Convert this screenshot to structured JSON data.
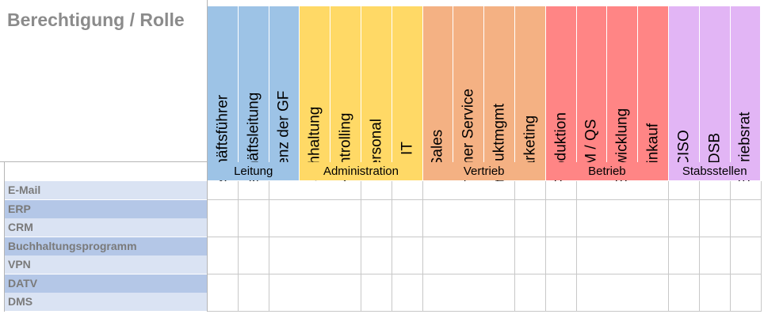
{
  "title": "Berechtigung / Rolle",
  "groups": [
    {
      "name": "Leitung",
      "color": "#9dc3e6",
      "roles": [
        "Geschäftsführer",
        "Geschäftsleitung",
        "Assistenz der GF"
      ]
    },
    {
      "name": "Administration",
      "color": "#ffd966",
      "roles": [
        "Buchhaltung",
        "Kontrolling",
        "Personal",
        "IT"
      ]
    },
    {
      "name": "Vertrieb",
      "color": "#f4b183",
      "roles": [
        "Sales",
        "Customer Service",
        "Produktmgmt",
        "Marketing"
      ]
    },
    {
      "name": "Betrieb",
      "color": "#ff8585",
      "roles": [
        "Produktion",
        "QM / QS",
        "Entwicklung",
        "Einkauf"
      ]
    },
    {
      "name": "Stabsstellen",
      "color": "#e2b5f5",
      "roles": [
        "CISO",
        "DSB",
        "Betriebsrat"
      ]
    }
  ],
  "rows": [
    {
      "label": "E-Mail",
      "color": "#dae3f3"
    },
    {
      "label": "ERP",
      "color": "#b4c7e7"
    },
    {
      "label": "CRM",
      "color": "#dae3f3"
    },
    {
      "label": "Buchhaltungsprogramm",
      "color": "#b4c7e7"
    },
    {
      "label": "VPN",
      "color": "#dae3f3"
    },
    {
      "label": "DATV",
      "color": "#b4c7e7"
    },
    {
      "label": "DMS",
      "color": "#dae3f3"
    }
  ]
}
